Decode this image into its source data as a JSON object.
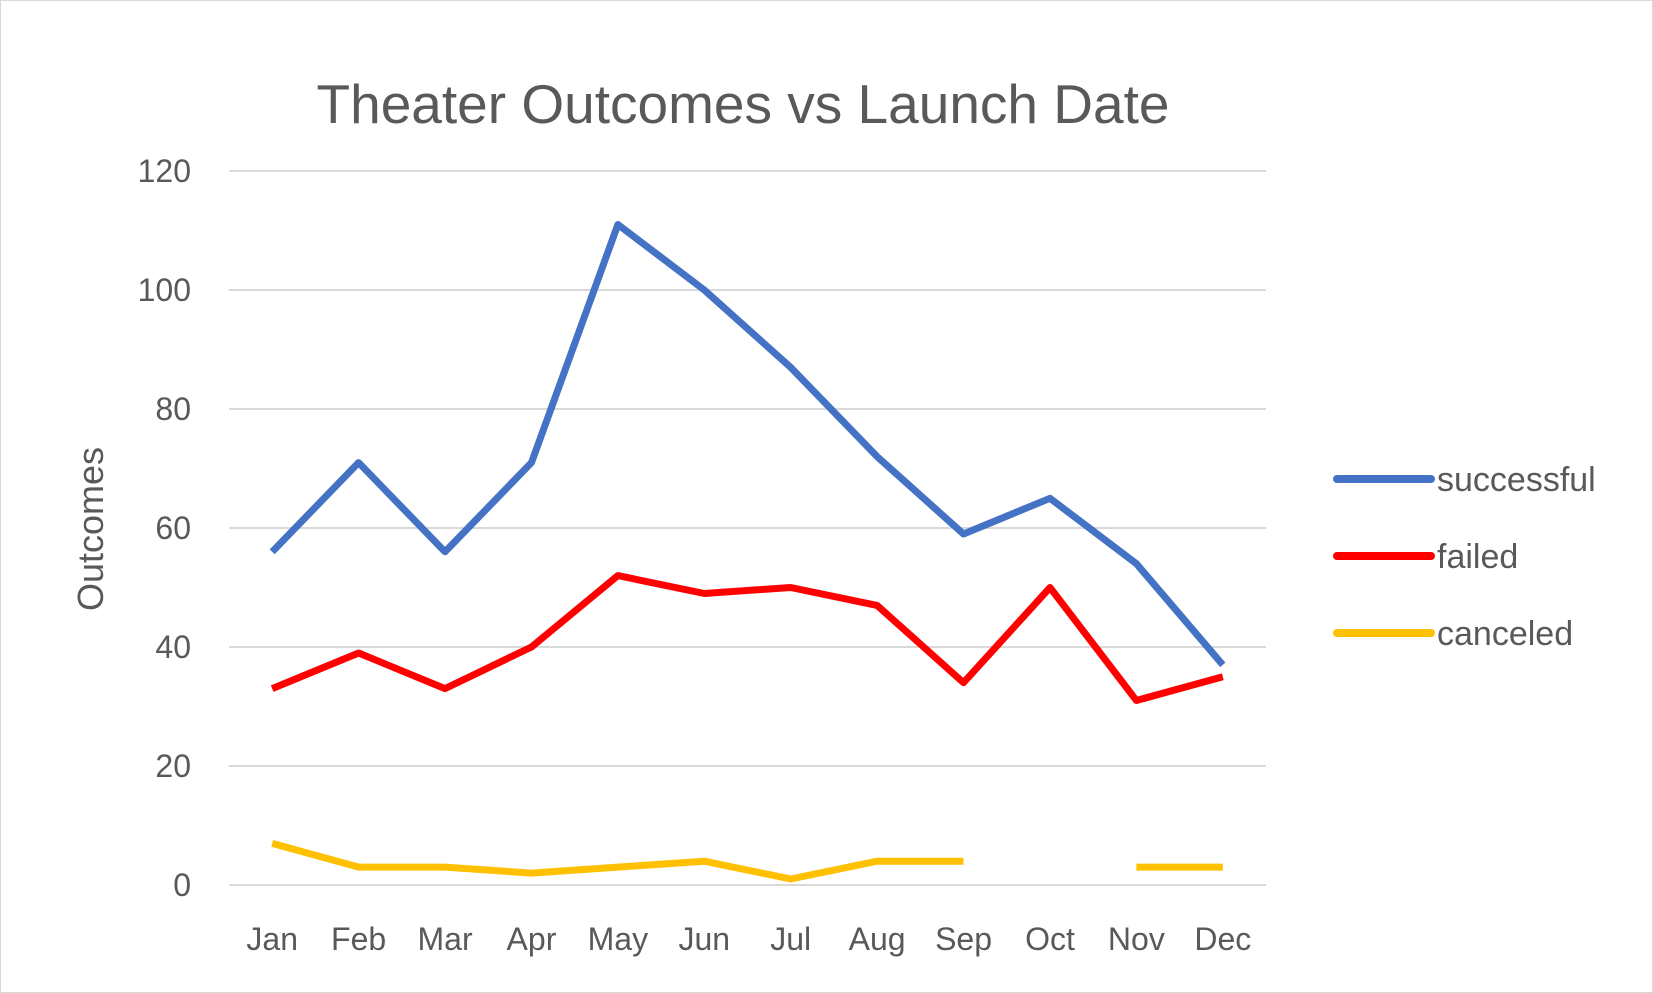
{
  "chart_data": {
    "type": "line",
    "title": "Theater Outcomes vs Launch Date",
    "xlabel": "",
    "ylabel": "Outcomes",
    "categories": [
      "Jan",
      "Feb",
      "Mar",
      "Apr",
      "May",
      "Jun",
      "Jul",
      "Aug",
      "Sep",
      "Oct",
      "Nov",
      "Dec"
    ],
    "ylim": [
      0,
      120
    ],
    "yticks": [
      0,
      20,
      40,
      60,
      80,
      100,
      120
    ],
    "grid": true,
    "legend": "right",
    "series": [
      {
        "name": "successful",
        "color": "#4472c4",
        "values": [
          56,
          71,
          56,
          71,
          111,
          100,
          87,
          72,
          59,
          65,
          54,
          37
        ]
      },
      {
        "name": "failed",
        "color": "#ff0000",
        "values": [
          33,
          39,
          33,
          40,
          52,
          49,
          50,
          47,
          34,
          50,
          31,
          35
        ]
      },
      {
        "name": "canceled",
        "color": "#ffc000",
        "values": [
          7,
          3,
          3,
          2,
          3,
          4,
          1,
          4,
          4,
          null,
          3,
          3
        ]
      }
    ]
  }
}
